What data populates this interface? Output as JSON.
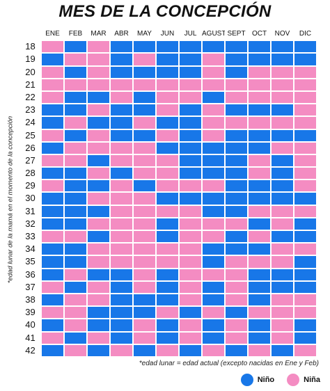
{
  "title": "MES DE LA CONCEPCIÓN",
  "y_label": "*edad lunar de la mamá en el momento de la concepción",
  "months": [
    "ENE",
    "FEB",
    "MAR",
    "ABR",
    "MAY",
    "JUN",
    "JUL",
    "AGUST",
    "SEPT",
    "OCT",
    "NOV",
    "DIC"
  ],
  "colors": {
    "boy": "#1877e8",
    "girl": "#f48cc2"
  },
  "rows": [
    {
      "age": "18",
      "cells": "gbgbbbbbbbbb"
    },
    {
      "age": "19",
      "cells": "bggbgbbgbbbb"
    },
    {
      "age": "20",
      "cells": "gbgbbbbgbggg"
    },
    {
      "age": "21",
      "cells": "gggggggggggg"
    },
    {
      "age": "22",
      "cells": "gbbgbggbggg g"
    },
    {
      "age": "23",
      "cells": "bbgbbgbgbbbg"
    },
    {
      "age": "24",
      "cells": "bgbbgbbgggg g"
    },
    {
      "age": "25",
      "cells": "gbgbbgbgbbbb"
    },
    {
      "age": "26",
      "cells": "bggggbbbbbgg"
    },
    {
      "age": "27",
      "cells": "ggbgggbbbgbg"
    },
    {
      "age": "28",
      "cells": "bbgbggbbbgbg"
    },
    {
      "age": "29",
      "cells": "gbbgbgggbbbg"
    },
    {
      "age": "30",
      "cells": "bbgggbbbbbbb"
    },
    {
      "age": "31",
      "cells": "bbbggggbbggg"
    },
    {
      "age": "32",
      "cells": "bbgggbgggbgb"
    },
    {
      "age": "33",
      "cells": "ggbggbggbgbb"
    },
    {
      "age": "34",
      "cells": "bbgggggbbbgg"
    },
    {
      "age": "35",
      "cells": "bbgggggbgggb"
    },
    {
      "age": "36",
      "cells": "bgbbgbgggbbb"
    },
    {
      "age": "37",
      "cells": "gbgbgbgbgbbb"
    },
    {
      "age": "38",
      "cells": "bggbbbgbgbgg"
    },
    {
      "age": "39",
      "cells": "ggbbbgbgbggg"
    },
    {
      "age": "40",
      "cells": "bgbbgbgbgbgb"
    },
    {
      "age": "41",
      "cells": "gbgbgbgbgbgb"
    },
    {
      "age": "42",
      "cells": "bgbgbgbgbgbg"
    }
  ],
  "footnote": "*edad lunar = edad actual (excepto nacidas en Ene y Feb)",
  "legend": {
    "boy": "Niño",
    "girl": "Niña"
  }
}
